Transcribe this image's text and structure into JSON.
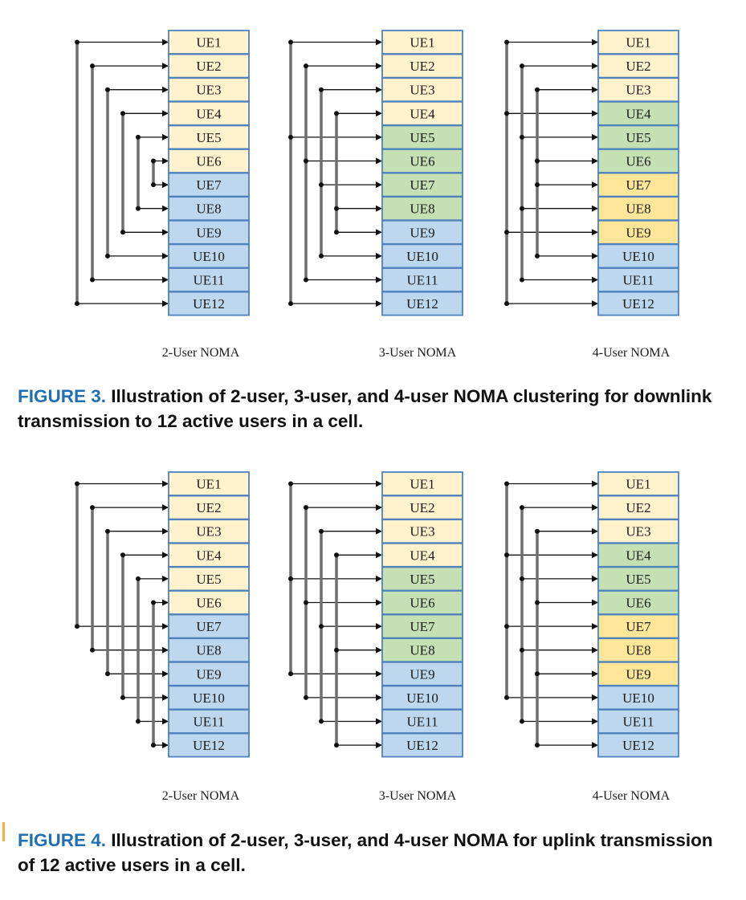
{
  "colors": {
    "weak_user": "#fff2cc",
    "second_tier": "#c5e0b4",
    "third_tier": "#ffe699",
    "strong_user": "#bdd7ee",
    "cell_border": "#4f82bd",
    "line": "#6e6e6e"
  },
  "figures": [
    {
      "id": "figure-3",
      "caption_label": "FIGURE 3.",
      "caption_text": "Illustration of 2-user, 3-user, and 4-user NOMA clustering for downlink transmission to 12 active users in a cell.",
      "panels": [
        {
          "label": "2-User NOMA",
          "cells": [
            {
              "text": "UE1",
              "tier": "weak_user"
            },
            {
              "text": "UE2",
              "tier": "weak_user"
            },
            {
              "text": "UE3",
              "tier": "weak_user"
            },
            {
              "text": "UE4",
              "tier": "weak_user"
            },
            {
              "text": "UE5",
              "tier": "weak_user"
            },
            {
              "text": "UE6",
              "tier": "weak_user"
            },
            {
              "text": "UE7",
              "tier": "strong_user"
            },
            {
              "text": "UE8",
              "tier": "strong_user"
            },
            {
              "text": "UE9",
              "tier": "strong_user"
            },
            {
              "text": "UE10",
              "tier": "strong_user"
            },
            {
              "text": "UE11",
              "tier": "strong_user"
            },
            {
              "text": "UE12",
              "tier": "strong_user"
            }
          ],
          "clusters": [
            [
              1,
              12
            ],
            [
              2,
              11
            ],
            [
              3,
              10
            ],
            [
              4,
              9
            ],
            [
              5,
              8
            ],
            [
              6,
              7
            ]
          ]
        },
        {
          "label": "3-User NOMA",
          "cells": [
            {
              "text": "UE1",
              "tier": "weak_user"
            },
            {
              "text": "UE2",
              "tier": "weak_user"
            },
            {
              "text": "UE3",
              "tier": "weak_user"
            },
            {
              "text": "UE4",
              "tier": "weak_user"
            },
            {
              "text": "UE5",
              "tier": "second_tier"
            },
            {
              "text": "UE6",
              "tier": "second_tier"
            },
            {
              "text": "UE7",
              "tier": "second_tier"
            },
            {
              "text": "UE8",
              "tier": "second_tier"
            },
            {
              "text": "UE9",
              "tier": "strong_user"
            },
            {
              "text": "UE10",
              "tier": "strong_user"
            },
            {
              "text": "UE11",
              "tier": "strong_user"
            },
            {
              "text": "UE12",
              "tier": "strong_user"
            }
          ],
          "clusters": [
            [
              1,
              5,
              12
            ],
            [
              2,
              6,
              11
            ],
            [
              3,
              7,
              10
            ],
            [
              4,
              8,
              9
            ]
          ]
        },
        {
          "label": "4-User NOMA",
          "cells": [
            {
              "text": "UE1",
              "tier": "weak_user"
            },
            {
              "text": "UE2",
              "tier": "weak_user"
            },
            {
              "text": "UE3",
              "tier": "weak_user"
            },
            {
              "text": "UE4",
              "tier": "second_tier"
            },
            {
              "text": "UE5",
              "tier": "second_tier"
            },
            {
              "text": "UE6",
              "tier": "second_tier"
            },
            {
              "text": "UE7",
              "tier": "third_tier"
            },
            {
              "text": "UE8",
              "tier": "third_tier"
            },
            {
              "text": "UE9",
              "tier": "third_tier"
            },
            {
              "text": "UE10",
              "tier": "strong_user"
            },
            {
              "text": "UE11",
              "tier": "strong_user"
            },
            {
              "text": "UE12",
              "tier": "strong_user"
            }
          ],
          "clusters": [
            [
              1,
              4,
              9,
              12
            ],
            [
              2,
              5,
              8,
              11
            ],
            [
              3,
              6,
              7,
              10
            ]
          ]
        }
      ]
    },
    {
      "id": "figure-4",
      "caption_label": "FIGURE 4.",
      "caption_text": "Illustration of 2-user, 3-user, and 4-user NOMA for uplink transmission of 12 active users in a cell.",
      "panels": [
        {
          "label": "2-User NOMA",
          "cells": [
            {
              "text": "UE1",
              "tier": "weak_user"
            },
            {
              "text": "UE2",
              "tier": "weak_user"
            },
            {
              "text": "UE3",
              "tier": "weak_user"
            },
            {
              "text": "UE4",
              "tier": "weak_user"
            },
            {
              "text": "UE5",
              "tier": "weak_user"
            },
            {
              "text": "UE6",
              "tier": "weak_user"
            },
            {
              "text": "UE7",
              "tier": "strong_user"
            },
            {
              "text": "UE8",
              "tier": "strong_user"
            },
            {
              "text": "UE9",
              "tier": "strong_user"
            },
            {
              "text": "UE10",
              "tier": "strong_user"
            },
            {
              "text": "UE11",
              "tier": "strong_user"
            },
            {
              "text": "UE12",
              "tier": "strong_user"
            }
          ],
          "clusters": [
            [
              1,
              7
            ],
            [
              2,
              8
            ],
            [
              3,
              9
            ],
            [
              4,
              10
            ],
            [
              5,
              11
            ],
            [
              6,
              12
            ]
          ]
        },
        {
          "label": "3-User NOMA",
          "cells": [
            {
              "text": "UE1",
              "tier": "weak_user"
            },
            {
              "text": "UE2",
              "tier": "weak_user"
            },
            {
              "text": "UE3",
              "tier": "weak_user"
            },
            {
              "text": "UE4",
              "tier": "weak_user"
            },
            {
              "text": "UE5",
              "tier": "second_tier"
            },
            {
              "text": "UE6",
              "tier": "second_tier"
            },
            {
              "text": "UE7",
              "tier": "second_tier"
            },
            {
              "text": "UE8",
              "tier": "second_tier"
            },
            {
              "text": "UE9",
              "tier": "strong_user"
            },
            {
              "text": "UE10",
              "tier": "strong_user"
            },
            {
              "text": "UE11",
              "tier": "strong_user"
            },
            {
              "text": "UE12",
              "tier": "strong_user"
            }
          ],
          "clusters": [
            [
              1,
              5,
              9
            ],
            [
              2,
              6,
              10
            ],
            [
              3,
              7,
              11
            ],
            [
              4,
              8,
              12
            ]
          ]
        },
        {
          "label": "4-User NOMA",
          "cells": [
            {
              "text": "UE1",
              "tier": "weak_user"
            },
            {
              "text": "UE2",
              "tier": "weak_user"
            },
            {
              "text": "UE3",
              "tier": "weak_user"
            },
            {
              "text": "UE4",
              "tier": "second_tier"
            },
            {
              "text": "UE5",
              "tier": "second_tier"
            },
            {
              "text": "UE6",
              "tier": "second_tier"
            },
            {
              "text": "UE7",
              "tier": "third_tier"
            },
            {
              "text": "UE8",
              "tier": "third_tier"
            },
            {
              "text": "UE9",
              "tier": "third_tier"
            },
            {
              "text": "UE10",
              "tier": "strong_user"
            },
            {
              "text": "UE11",
              "tier": "strong_user"
            },
            {
              "text": "UE12",
              "tier": "strong_user"
            }
          ],
          "clusters": [
            [
              1,
              4,
              7,
              10
            ],
            [
              2,
              5,
              8,
              11
            ],
            [
              3,
              6,
              9,
              12
            ]
          ]
        }
      ]
    }
  ]
}
